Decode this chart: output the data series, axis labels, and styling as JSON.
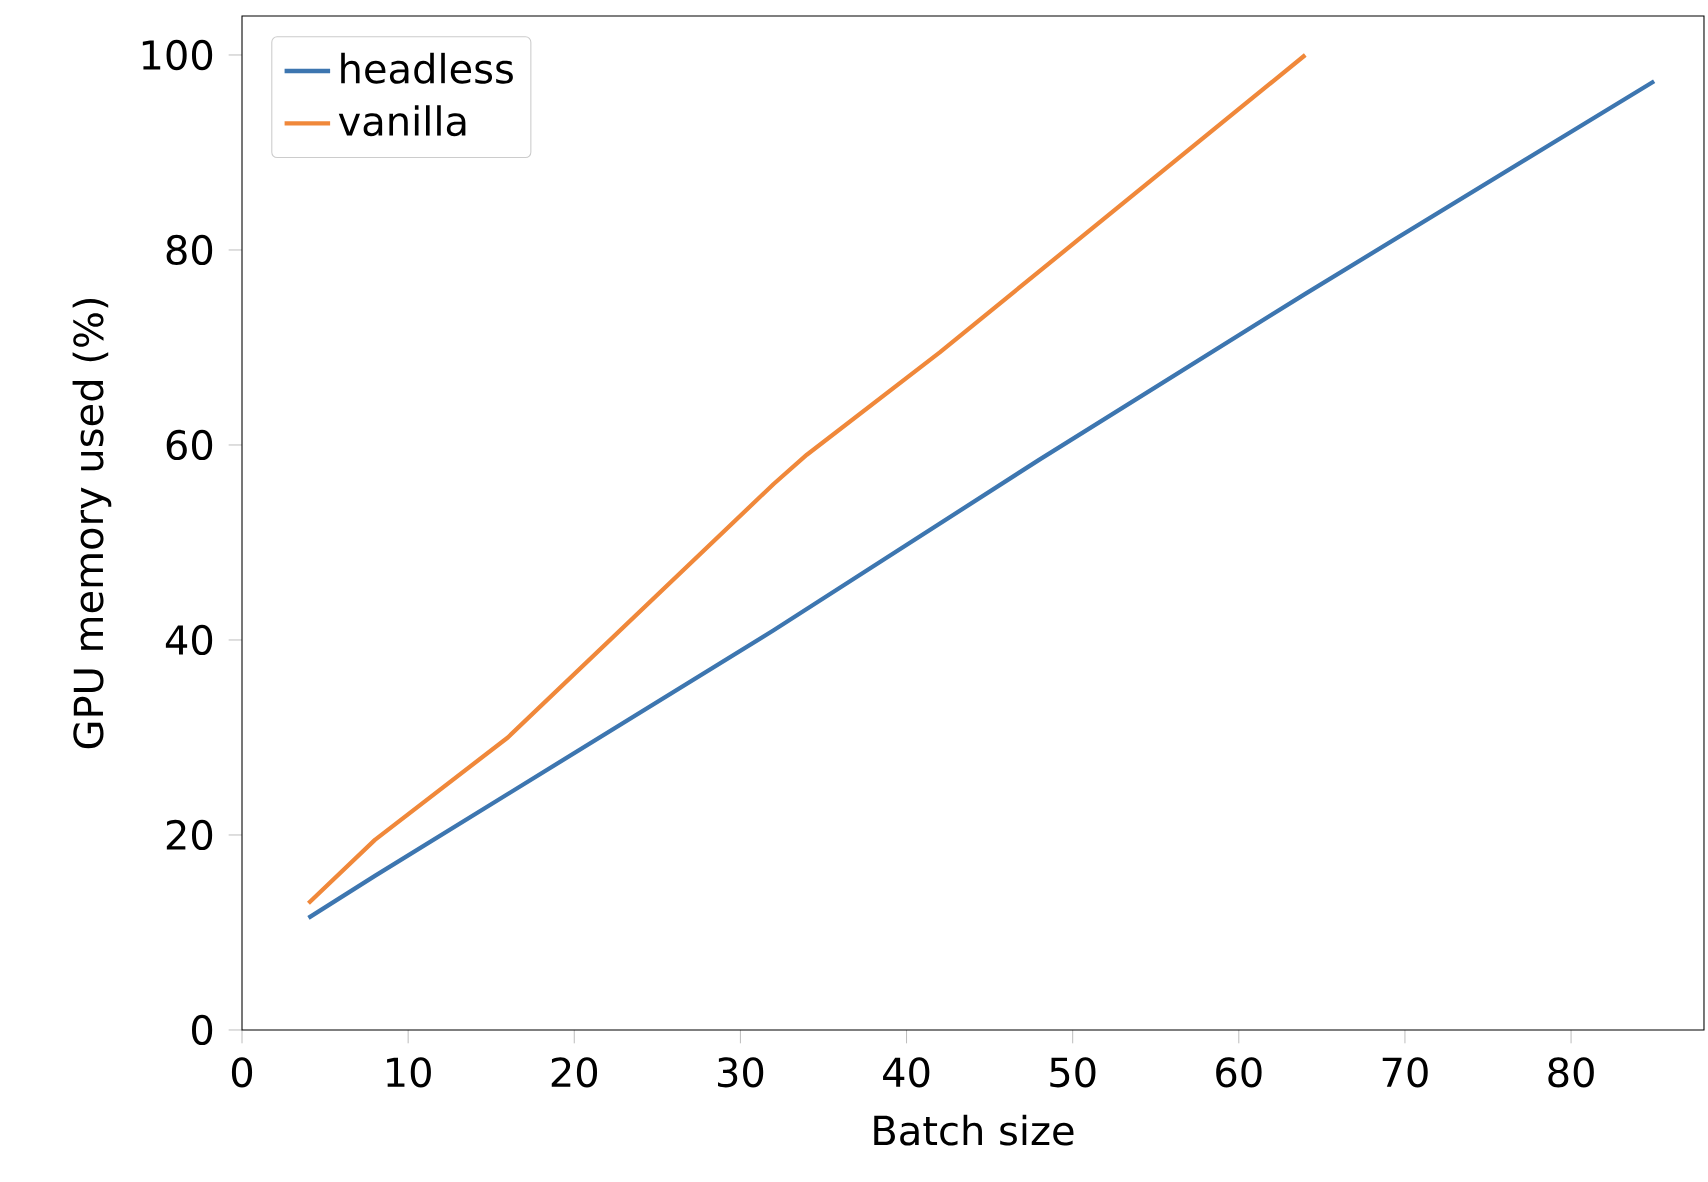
{
  "chart_data": {
    "type": "line",
    "xlabel": "Batch size",
    "ylabel": "GPU memory used (%)",
    "xlim": [
      0,
      88
    ],
    "ylim": [
      0,
      104
    ],
    "xticks": [
      0,
      10,
      20,
      30,
      40,
      50,
      60,
      70,
      80
    ],
    "yticks": [
      0,
      20,
      40,
      60,
      80,
      100
    ],
    "legend": "top left",
    "grid": false,
    "series": [
      {
        "name": "headless",
        "color": "#3d76b0",
        "x": [
          4,
          8,
          16,
          32,
          48,
          64,
          85
        ],
        "values": [
          11.5,
          15.8,
          24.2,
          41,
          58.5,
          75.5,
          97.3
        ]
      },
      {
        "name": "vanilla",
        "color": "#f0883a",
        "x": [
          4,
          8,
          16,
          32,
          34,
          42,
          64
        ],
        "values": [
          13,
          19.5,
          30,
          56,
          59,
          69.5,
          100
        ]
      }
    ]
  }
}
